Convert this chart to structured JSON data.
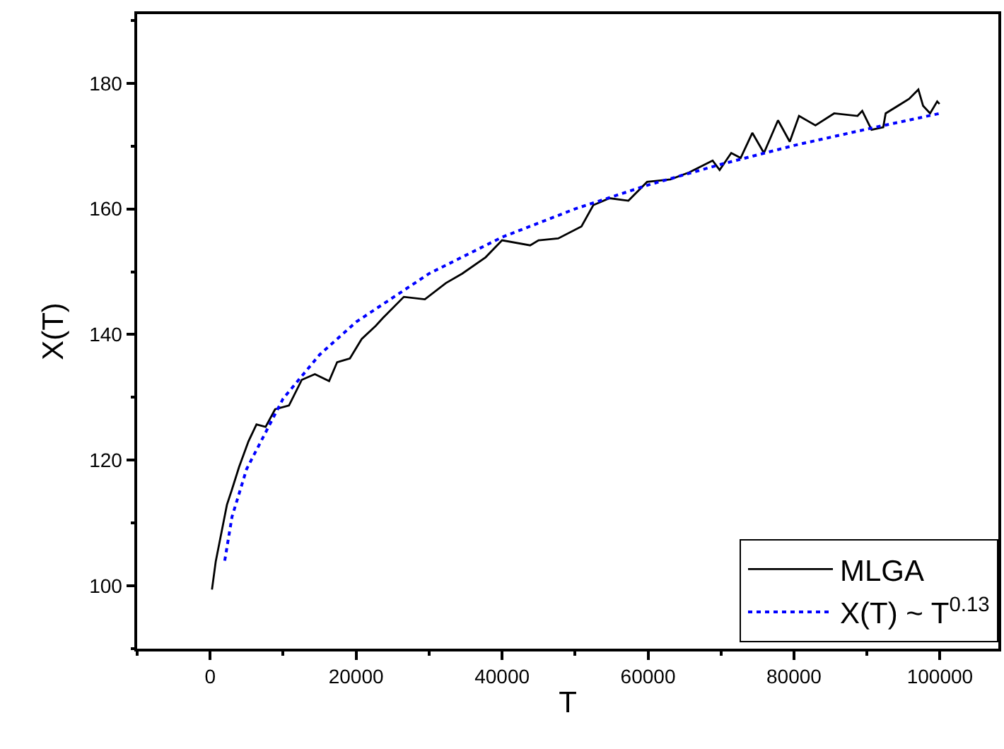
{
  "chart_data": {
    "type": "line",
    "xlabel": "T",
    "ylabel": "X(T)",
    "xlim": [
      -10000,
      108000
    ],
    "xticks": [
      0,
      20000,
      40000,
      60000,
      80000,
      100000
    ],
    "ylim": [
      90,
      191
    ],
    "yticks": [
      100,
      120,
      140,
      160,
      180
    ],
    "legend": "bottom right",
    "marker": "none",
    "series": [
      {
        "name": "MLGA",
        "color": "#000000",
        "line_style": "solid",
        "x": [
          250,
          770,
          2300,
          2950,
          3960,
          5250,
          6350,
          7600,
          8900,
          10800,
          12560,
          14350,
          16300,
          17400,
          19150,
          20770,
          22700,
          23650,
          26540,
          29420,
          32300,
          34540,
          37750,
          40000,
          43850,
          45000,
          47690,
          50880,
          52500,
          54730,
          57310,
          59870,
          63080,
          65630,
          68850,
          69810,
          71400,
          72690,
          74290,
          75880,
          77810,
          79420,
          80690,
          82940,
          85500,
          88710,
          89350,
          90630,
          92230,
          92560,
          95770,
          97040,
          97690,
          98650,
          99620,
          99940
        ],
        "values": [
          99.4,
          103.9,
          112.9,
          115.2,
          118.9,
          123,
          125.7,
          125.3,
          128.1,
          128.7,
          132.8,
          133.7,
          132.6,
          135.6,
          136.2,
          139.3,
          141.4,
          142.6,
          146,
          145.6,
          148.2,
          149.7,
          152.3,
          155,
          154.2,
          155,
          155.3,
          157.2,
          160.6,
          161.7,
          161.3,
          164.3,
          164.7,
          165.8,
          167.7,
          166.2,
          168.9,
          168.1,
          172.1,
          168.9,
          174.1,
          170.7,
          174.8,
          173.3,
          175.2,
          174.8,
          175.6,
          172.6,
          173,
          175.2,
          177.5,
          179,
          176.4,
          175.2,
          177.1,
          176.7
        ]
      },
      {
        "name": "X(T) ~ T$^{0.13}$",
        "color": "#0000ff",
        "line_style": "dotted",
        "x": [
          2000,
          3000,
          5000,
          10000,
          15000,
          20000,
          30000,
          40000,
          50000,
          60000,
          70000,
          80000,
          90000,
          100000
        ],
        "values": [
          104,
          111,
          118.6,
          129.8,
          136.8,
          142,
          149.7,
          155.5,
          160,
          163.8,
          167.1,
          170.1,
          172.7,
          175.2
        ]
      }
    ]
  }
}
